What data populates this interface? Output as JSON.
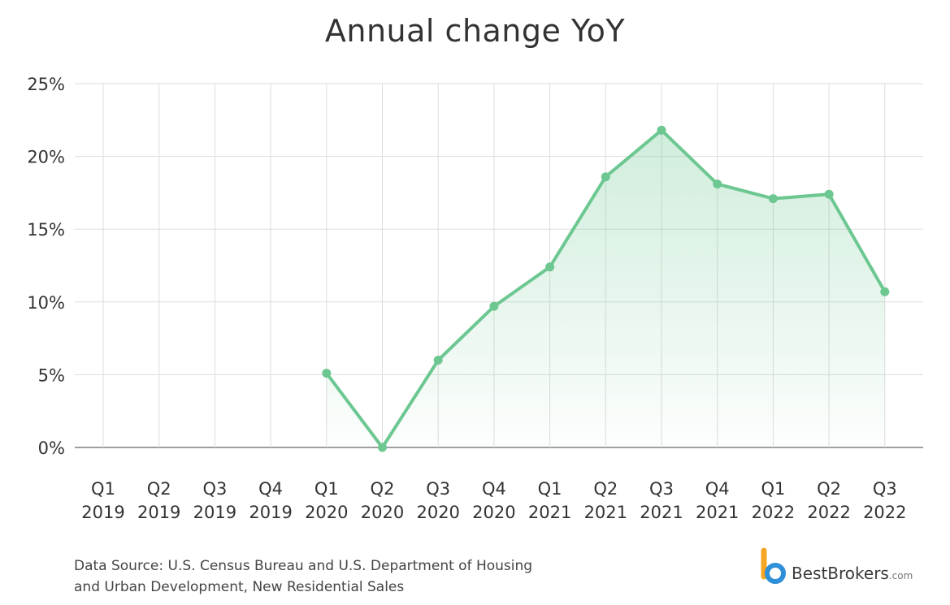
{
  "chart_data": {
    "type": "area",
    "title": "Annual change YoY",
    "categories": [
      [
        "Q1",
        "2019"
      ],
      [
        "Q2",
        "2019"
      ],
      [
        "Q3",
        "2019"
      ],
      [
        "Q4",
        "2019"
      ],
      [
        "Q1",
        "2020"
      ],
      [
        "Q2",
        "2020"
      ],
      [
        "Q3",
        "2020"
      ],
      [
        "Q4",
        "2020"
      ],
      [
        "Q1",
        "2021"
      ],
      [
        "Q2",
        "2021"
      ],
      [
        "Q3",
        "2021"
      ],
      [
        "Q4",
        "2021"
      ],
      [
        "Q1",
        "2022"
      ],
      [
        "Q2",
        "2022"
      ],
      [
        "Q3",
        "2022"
      ]
    ],
    "series": [
      {
        "values": [
          null,
          null,
          null,
          null,
          5.1,
          0.0,
          6.0,
          9.7,
          12.4,
          18.6,
          21.8,
          18.1,
          17.1,
          17.4,
          10.7
        ],
        "color": "#6cc791"
      }
    ],
    "yticks": [
      "0%",
      "5%",
      "10%",
      "15%",
      "20%",
      "25%"
    ],
    "ylim": [
      0,
      25
    ],
    "grid": true,
    "legend": "none"
  },
  "source": {
    "line1": "Data Source: U.S. Census Bureau and U.S. Department of Housing",
    "line2": "and Urban Development, New Residential Sales"
  },
  "brand": {
    "name": "BestBrokers",
    "domain": ".com",
    "colors": {
      "blue": "#2f8fd8",
      "orange": "#f5a623"
    }
  }
}
